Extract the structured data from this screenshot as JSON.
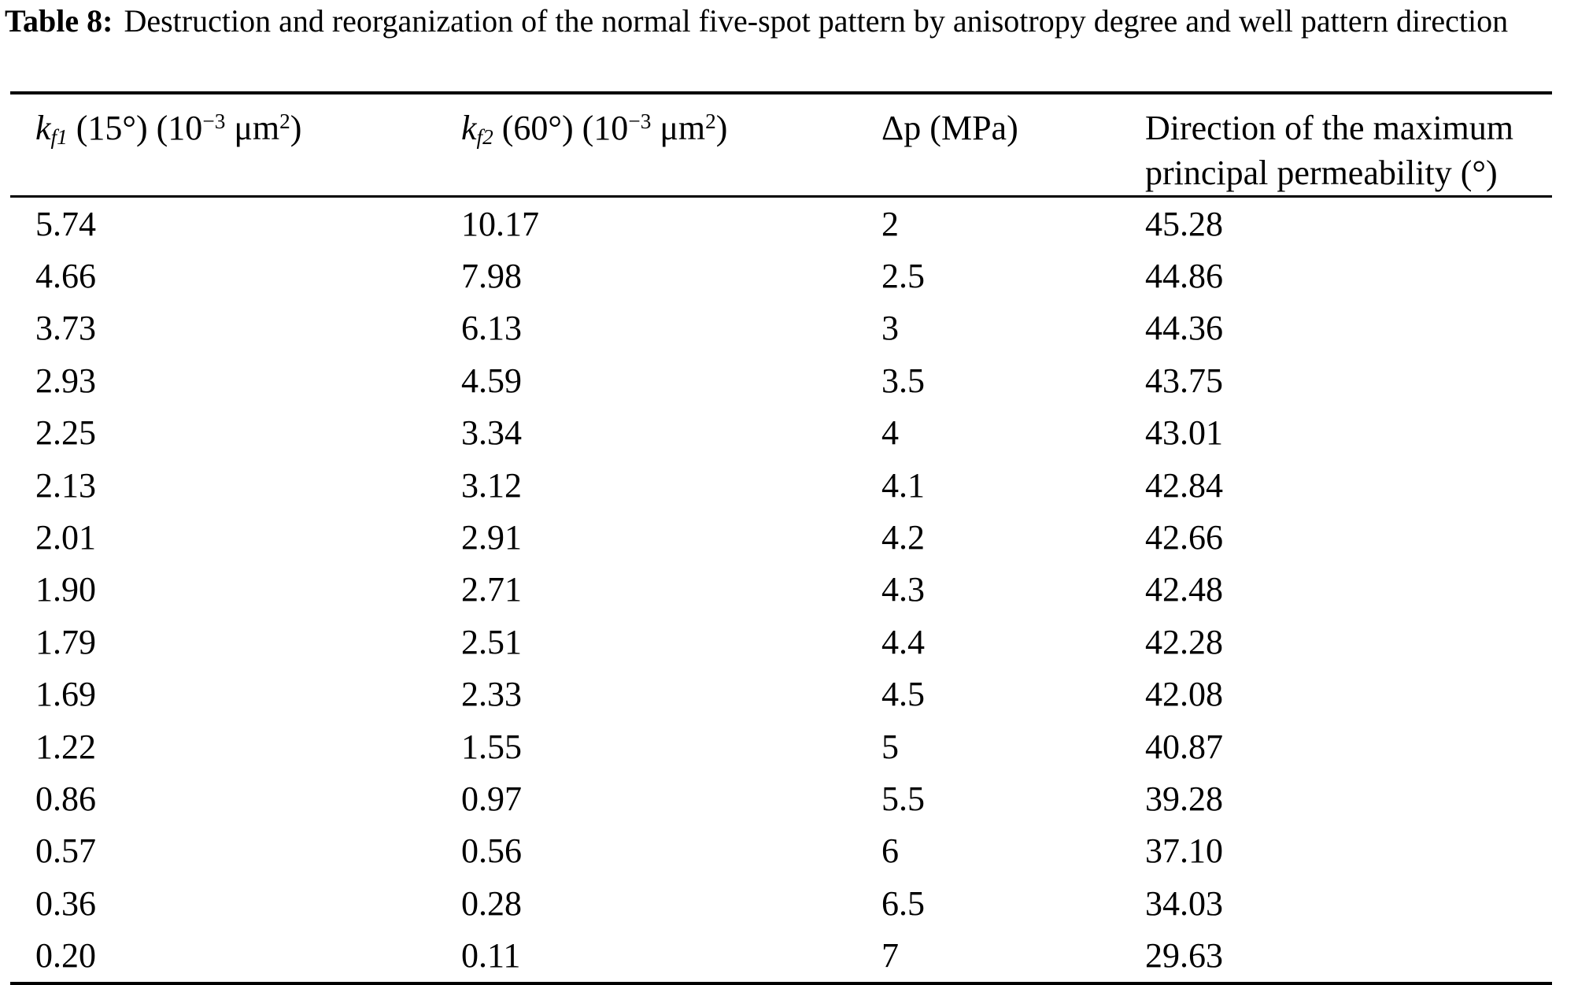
{
  "caption": {
    "label": "Table 8:",
    "text": "Destruction and reorganization of the normal five-spot pattern by anisotropy degree and well pattern direction"
  },
  "table": {
    "columns": [
      {
        "id": "kf1",
        "plain_label": "kf1 (15°) (10−3 μm2)",
        "segments": [
          {
            "text": "k",
            "italic": true
          },
          {
            "text": "f1",
            "italic": true,
            "script": "sub"
          },
          {
            "text": " (15°) (10"
          },
          {
            "text": "−3",
            "script": "sup"
          },
          {
            "text": " μm"
          },
          {
            "text": "2",
            "script": "sup"
          },
          {
            "text": ")"
          }
        ]
      },
      {
        "id": "kf2",
        "plain_label": "kf2 (60°) (10−3 μm2)",
        "segments": [
          {
            "text": "k",
            "italic": true
          },
          {
            "text": "f2",
            "italic": true,
            "script": "sub"
          },
          {
            "text": " (60°) (10"
          },
          {
            "text": "−3",
            "script": "sup"
          },
          {
            "text": " μm"
          },
          {
            "text": "2",
            "script": "sup"
          },
          {
            "text": ")"
          }
        ]
      },
      {
        "id": "dp",
        "plain_label": "Δp (MPa)",
        "segments": [
          {
            "text": "Δp (MPa)"
          }
        ]
      },
      {
        "id": "direction",
        "plain_label": "Direction of the maximum principal permeability (°)",
        "segments": [
          {
            "text": "Direction of the maximum principal permeability (°)"
          }
        ]
      }
    ],
    "rows": [
      [
        "5.74",
        "10.17",
        "2",
        "45.28"
      ],
      [
        "4.66",
        "7.98",
        "2.5",
        "44.86"
      ],
      [
        "3.73",
        "6.13",
        "3",
        "44.36"
      ],
      [
        "2.93",
        "4.59",
        "3.5",
        "43.75"
      ],
      [
        "2.25",
        "3.34",
        "4",
        "43.01"
      ],
      [
        "2.13",
        "3.12",
        "4.1",
        "42.84"
      ],
      [
        "2.01",
        "2.91",
        "4.2",
        "42.66"
      ],
      [
        "1.90",
        "2.71",
        "4.3",
        "42.48"
      ],
      [
        "1.79",
        "2.51",
        "4.4",
        "42.28"
      ],
      [
        "1.69",
        "2.33",
        "4.5",
        "42.08"
      ],
      [
        "1.22",
        "1.55",
        "5",
        "40.87"
      ],
      [
        "0.86",
        "0.97",
        "5.5",
        "39.28"
      ],
      [
        "0.57",
        "0.56",
        "6",
        "37.10"
      ],
      [
        "0.36",
        "0.28",
        "6.5",
        "34.03"
      ],
      [
        "0.20",
        "0.11",
        "7",
        "29.63"
      ]
    ],
    "colors": {
      "text": "#000000",
      "background": "#ffffff",
      "rule": "#000000"
    }
  }
}
